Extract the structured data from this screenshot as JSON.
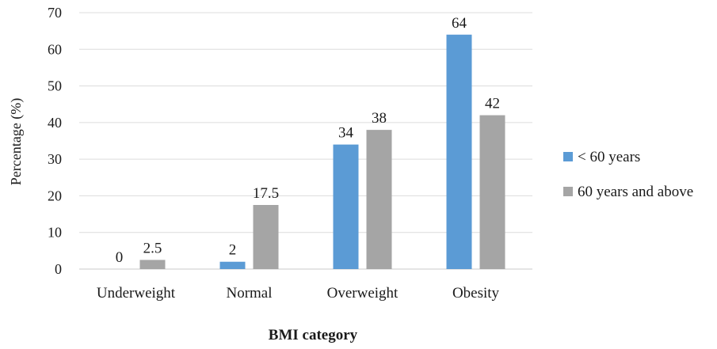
{
  "chart_data": {
    "type": "bar",
    "title": "",
    "xlabel": "BMI category",
    "ylabel": "Percentage (%)",
    "ylim": [
      0,
      70
    ],
    "yticks": [
      0,
      10,
      20,
      30,
      40,
      50,
      60,
      70
    ],
    "grid": true,
    "legend_position": "right",
    "categories": [
      "Underweight",
      "Normal",
      "Overweight",
      "Obesity"
    ],
    "series": [
      {
        "name": "< 60 years",
        "values": [
          0,
          2,
          34,
          64
        ],
        "labels": [
          "0",
          "2",
          "34",
          "64"
        ],
        "color": "#5b9bd5"
      },
      {
        "name": "60 years and above",
        "values": [
          2.5,
          17.5,
          38,
          42
        ],
        "labels": [
          "2.5",
          "17.5",
          "38",
          "42"
        ],
        "color": "#a5a5a5"
      }
    ]
  }
}
